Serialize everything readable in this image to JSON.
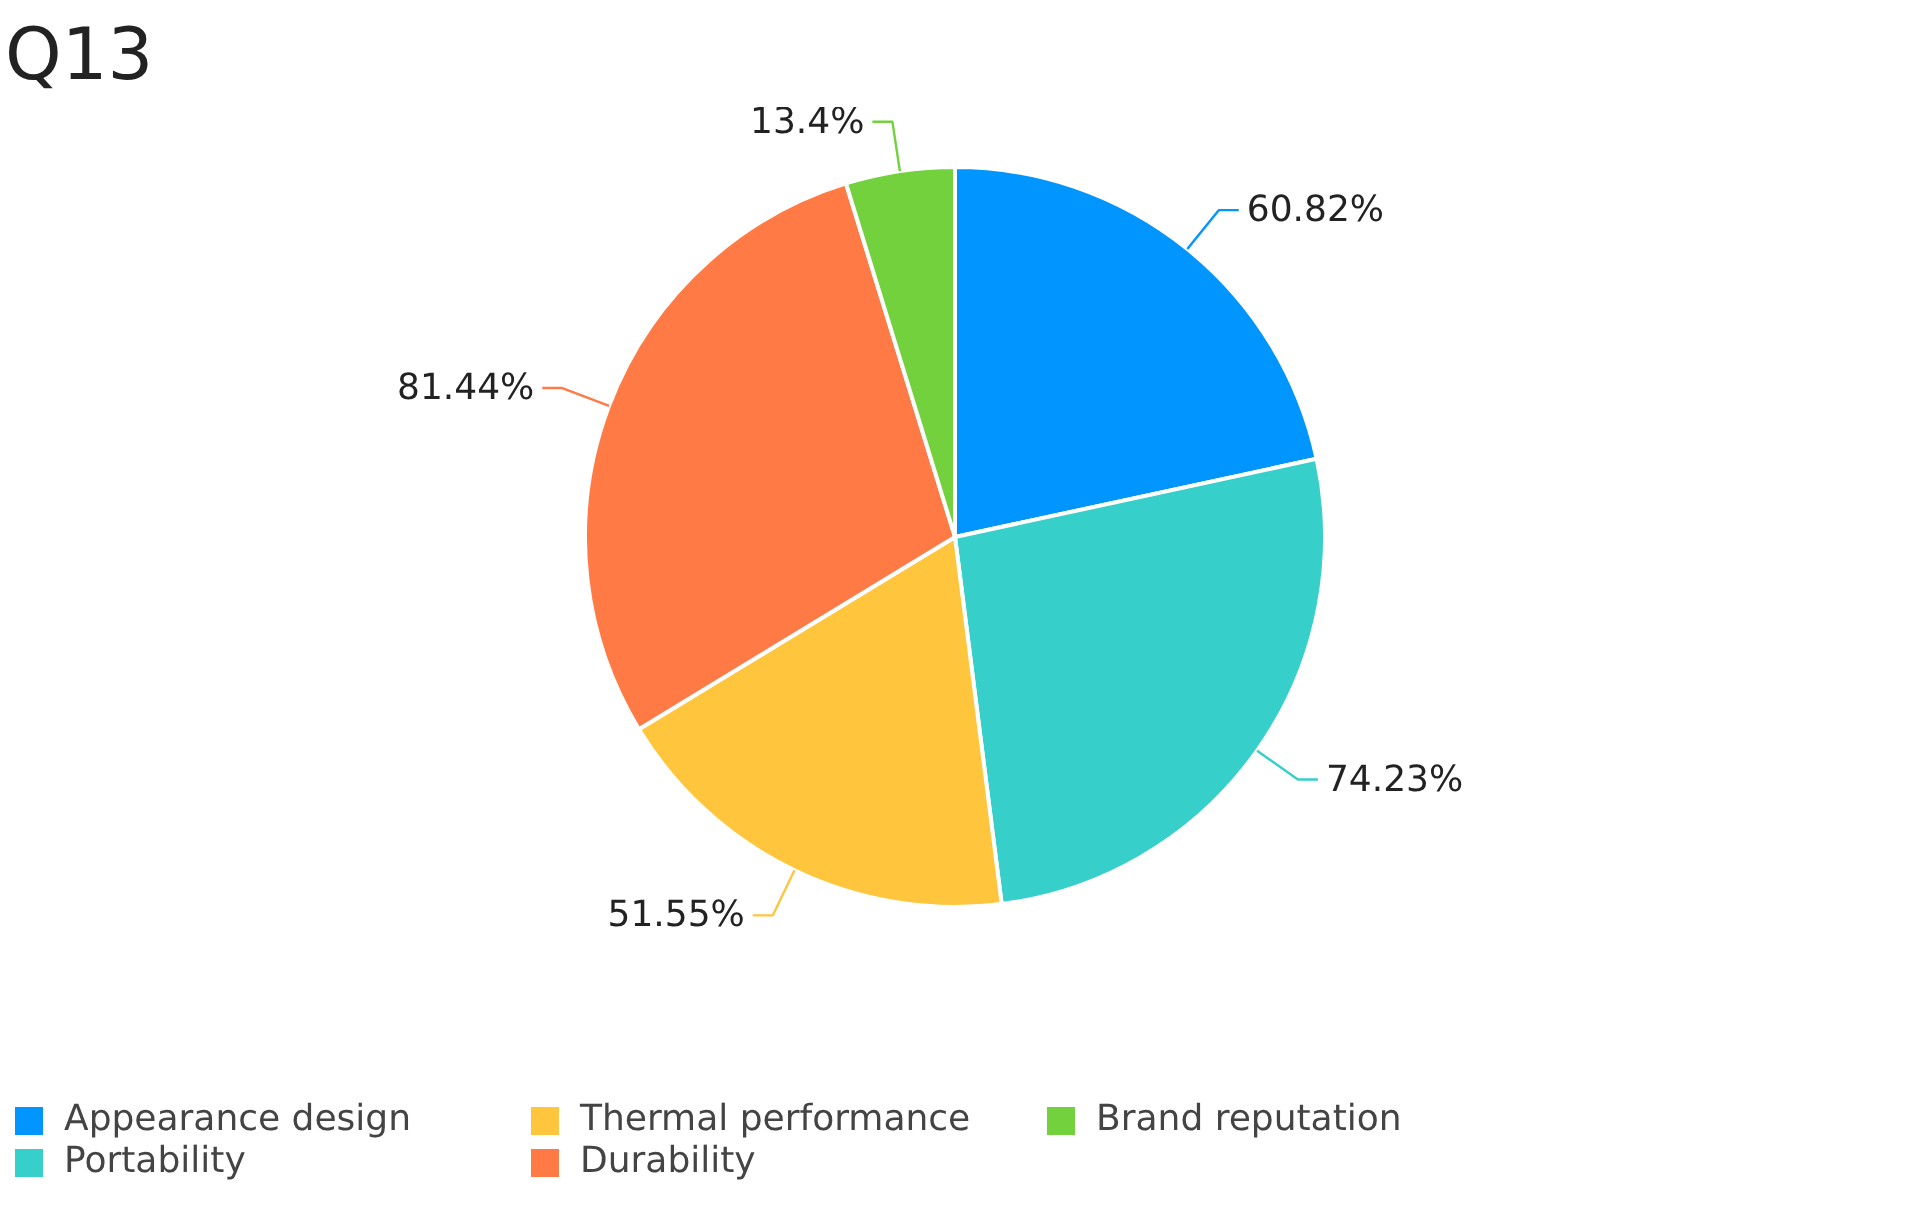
{
  "chart_data": {
    "type": "pie",
    "title": "Q13",
    "categories": [
      "Appearance design",
      "Portability",
      "Thermal performance",
      "Durability",
      "Brand reputation"
    ],
    "values": [
      60.82,
      74.23,
      51.55,
      81.44,
      13.4
    ],
    "colors": [
      "#0095ff",
      "#36cfc9",
      "#ffc53d",
      "#ff7a45",
      "#73d13d"
    ],
    "value_labels": [
      "60.82%",
      "74.23%",
      "51.55%",
      "81.44%",
      "13.4%"
    ],
    "legend": "bottom"
  }
}
